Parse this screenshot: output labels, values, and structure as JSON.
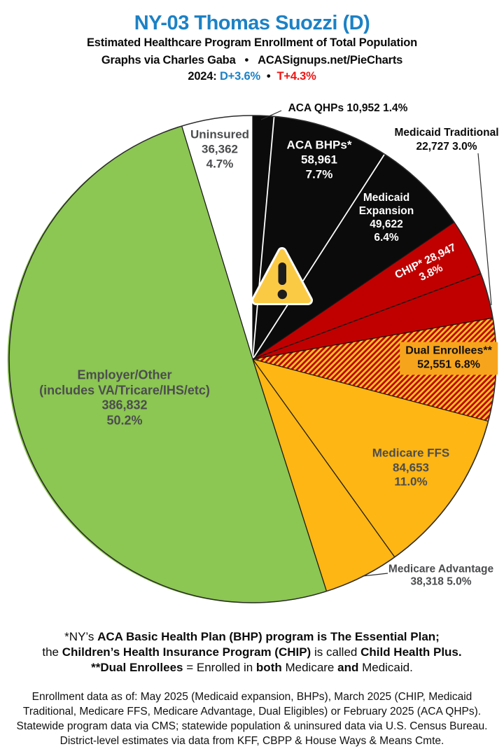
{
  "header": {
    "title": "NY-03 Thomas Suozzi (D)",
    "subtitle": "Estimated Healthcare Program Enrollment of Total Population",
    "credit_prefix": "Graphs via Charles Gaba",
    "bullet": "•",
    "credit_site": "ACASignups.net/PieCharts",
    "year_label": "2024:",
    "dem_margin": "D+3.6%",
    "rep_margin": "T+4.3%"
  },
  "colors": {
    "title_blue": "#1C81C5",
    "margin_red": "#EE1514",
    "pie_black": "#0B0B0B",
    "pie_dark_red": "#C00000",
    "pie_gold": "#FDB613",
    "pie_green": "#8CC653",
    "pie_white": "#FFFFFF",
    "hatch_red": "#C00000",
    "hatch_yellow": "#FFC125",
    "dual_label_bg": "#F7A41D",
    "label_gray": "#4C4D4F",
    "black_divider": "#FFFFFF",
    "slice_divider": "#161616",
    "outline": "#2B2B2B"
  },
  "chart_data": {
    "type": "pie",
    "title": "Estimated Healthcare Program Enrollment of Total Population",
    "start_angle_deg": 0,
    "direction": "clockwise",
    "legend_position": "labels-on-slices",
    "slices": [
      {
        "id": "aca-qhps",
        "label": "ACA QHPs",
        "value": 10952,
        "pct": 1.4,
        "color": "#0B0B0B",
        "placement": "outside"
      },
      {
        "id": "aca-bhps",
        "label": "ACA BHPs*",
        "value": 58961,
        "pct": 7.7,
        "color": "#0B0B0B",
        "placement": "inside"
      },
      {
        "id": "medicaid-expansion",
        "label": "Medicaid Expansion",
        "value": 49622,
        "pct": 6.4,
        "color": "#0B0B0B",
        "placement": "inside"
      },
      {
        "id": "chip",
        "label": "CHIP*",
        "value": 28947,
        "pct": 3.8,
        "color": "#C00000",
        "placement": "inside"
      },
      {
        "id": "medicaid-traditional",
        "label": "Medicaid Traditional",
        "value": 22727,
        "pct": 3.0,
        "color": "#C00000",
        "placement": "outside"
      },
      {
        "id": "dual-enrollees",
        "label": "Dual Enrollees**",
        "value": 52551,
        "pct": 6.8,
        "color": "hatch",
        "placement": "inside"
      },
      {
        "id": "medicare-ffs",
        "label": "Medicare FFS",
        "value": 84653,
        "pct": 11.0,
        "color": "#FDB613",
        "placement": "inside"
      },
      {
        "id": "medicare-advantage",
        "label": "Medicare Advantage",
        "value": 38318,
        "pct": 5.0,
        "color": "#FDB613",
        "placement": "outside"
      },
      {
        "id": "employer-other",
        "label": "Employer/Other (includes VA/Tricare/IHS/etc)",
        "value": 386832,
        "pct": 50.2,
        "color": "#8CC653",
        "placement": "inside"
      },
      {
        "id": "uninsured",
        "label": "Uninsured",
        "value": 36362,
        "pct": 4.7,
        "color": "#FFFFFF",
        "placement": "inside"
      }
    ]
  },
  "slice_labels": {
    "aca_qhps": {
      "line1": "ACA QHPs 10,952 1.4%"
    },
    "aca_bhps": {
      "line1": "ACA BHPs*",
      "line2": "58,961",
      "line3": "7.7%"
    },
    "medicaid_traditional": {
      "line1": "Medicaid Traditional",
      "line2": "22,727 3.0%"
    },
    "medicaid_expansion": {
      "line1": "Medicaid",
      "line2": "Expansion",
      "line3": "49,622",
      "line4": "6.4%"
    },
    "chip": {
      "line1": "CHIP* 28,947",
      "line2": "3.8%"
    },
    "dual": {
      "line1": "Dual Enrollees**",
      "line2": "52,551 6.8%"
    },
    "medicare_ffs": {
      "line1": "Medicare FFS",
      "line2": "84,653",
      "line3": "11.0%"
    },
    "medicare_advantage": {
      "line1": "Medicare Advantage",
      "line2": "38,318 5.0%"
    },
    "employer": {
      "line1": "Employer/Other",
      "line2": "(includes VA/Tricare/IHS/etc)",
      "line3": "386,832",
      "line4": "50.2%"
    },
    "uninsured": {
      "line1": "Uninsured",
      "line2": "36,362",
      "line3": "4.7%"
    }
  },
  "footnote1": {
    "l1a": "*NY’s ",
    "l1b": "ACA Basic Health Plan (BHP) program is The Essential Plan;",
    "l2a": "the ",
    "l2b": "Children’s Health Insurance Program (CHIP)",
    "l2c": " is called ",
    "l2d": "Child Health Plus.",
    "l3a": "**Dual Enrollees",
    "l3b": " = Enrolled in ",
    "l3c": "both",
    "l3d": " Medicare ",
    "l3e": "and",
    "l3f": " Medicaid."
  },
  "footnote2": {
    "line1": "Enrollment data as of: May 2025 (Medicaid expansion, BHPs), March 2025 (CHIP, Medicaid",
    "line2": "Traditional, Medicare FFS, Medicare Advantage, Dual Eligibles) or February 2025 (ACA QHPs).",
    "line3": "Statewide program data via CMS; statewide population & uninsured data via U.S. Census Bureau.",
    "line4": "District-level estimates via data from KFF, CBPP & House Ways & Means Cmte."
  }
}
